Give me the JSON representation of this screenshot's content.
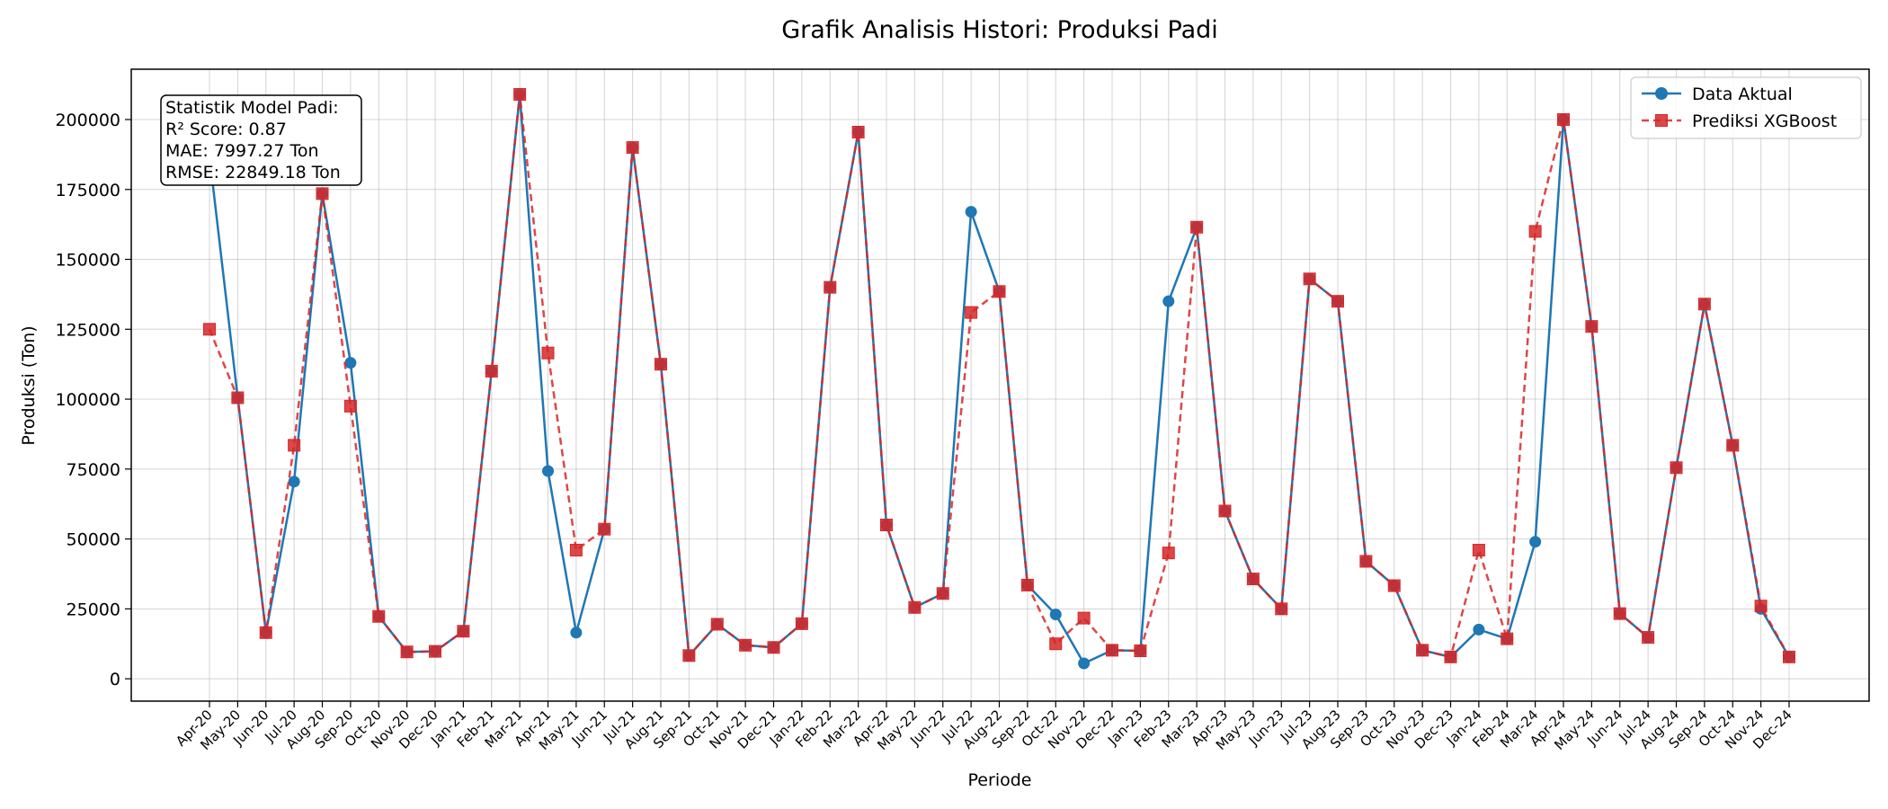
{
  "chart_data": {
    "type": "line",
    "title": "Grafik Analisis Histori: Produksi Padi",
    "xlabel": "Periode",
    "ylabel": "Produksi (Ton)",
    "ylim": [
      -8000,
      218000
    ],
    "yticks": [
      0,
      25000,
      50000,
      75000,
      100000,
      125000,
      150000,
      175000,
      200000
    ],
    "ytick_labels": [
      "0",
      "25000",
      "50000",
      "75000",
      "100000",
      "125000",
      "150000",
      "175000",
      "200000"
    ],
    "grid": true,
    "legend_position": "top-right",
    "categories": [
      "Apr-20",
      "May-20",
      "Jun-20",
      "Jul-20",
      "Aug-20",
      "Sep-20",
      "Oct-20",
      "Nov-20",
      "Dec-20",
      "Jan-21",
      "Feb-21",
      "Mar-21",
      "Apr-21",
      "May-21",
      "Jun-21",
      "Jul-21",
      "Aug-21",
      "Sep-21",
      "Oct-21",
      "Nov-21",
      "Dec-21",
      "Jan-22",
      "Feb-22",
      "Mar-22",
      "Apr-22",
      "May-22",
      "Jun-22",
      "Jul-22",
      "Aug-22",
      "Sep-22",
      "Oct-22",
      "Nov-22",
      "Dec-22",
      "Jan-23",
      "Feb-23",
      "Mar-23",
      "Apr-23",
      "May-23",
      "Jun-23",
      "Jul-23",
      "Aug-23",
      "Sep-23",
      "Oct-23",
      "Nov-23",
      "Dec-23",
      "Jan-24",
      "Feb-24",
      "Mar-24",
      "Apr-24",
      "May-24",
      "Jun-24",
      "Jul-24",
      "Aug-24",
      "Sep-24",
      "Oct-24",
      "Nov-24",
      "Dec-24"
    ],
    "series": [
      {
        "name": "Data Aktual",
        "color": "#1f77b4",
        "style": "solid",
        "marker": "circle",
        "values": [
          187000,
          100500,
          16500,
          70500,
          173500,
          113000,
          22300,
          9600,
          9800,
          17000,
          110000,
          209000,
          74300,
          16500,
          53500,
          190000,
          112500,
          8300,
          19500,
          12000,
          11200,
          19700,
          140000,
          195500,
          55000,
          25500,
          30500,
          167000,
          138500,
          33500,
          23000,
          5500,
          10200,
          10000,
          135000,
          161500,
          60000,
          35700,
          25000,
          143000,
          135000,
          42000,
          33300,
          10200,
          7800,
          17600,
          14300,
          49000,
          200000,
          126000,
          23300,
          14800,
          75500,
          134000,
          83500,
          25000,
          7800
        ]
      },
      {
        "name": "Prediksi XGBoost",
        "color": "#d62728",
        "style": "dashed",
        "marker": "square",
        "values": [
          125000,
          100500,
          16500,
          83500,
          173500,
          97500,
          22300,
          9600,
          9800,
          17000,
          110000,
          209000,
          116500,
          46000,
          53500,
          190000,
          112500,
          8300,
          19500,
          12000,
          11200,
          19700,
          140000,
          195500,
          55000,
          25500,
          30500,
          131000,
          138500,
          33500,
          12500,
          21700,
          10200,
          10000,
          45000,
          161500,
          60000,
          35700,
          25000,
          143000,
          135000,
          42000,
          33300,
          10200,
          7800,
          46000,
          14300,
          160000,
          200000,
          126000,
          23300,
          14800,
          75500,
          134000,
          83500,
          26000,
          7800
        ]
      }
    ],
    "stats_box": {
      "lines": [
        "Statistik Model Padi:",
        "R² Score: 0.87",
        "MAE: 7997.27 Ton",
        "RMSE: 22849.18 Ton"
      ]
    }
  }
}
